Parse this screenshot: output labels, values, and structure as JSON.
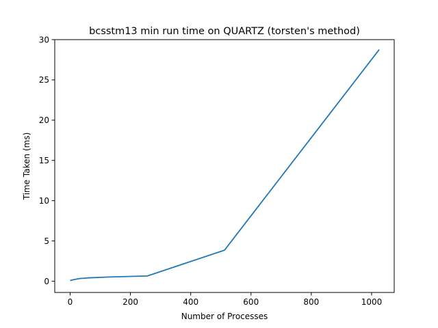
{
  "chart_data": {
    "type": "line",
    "title": "bcsstm13 min run time on QUARTZ (torsten's method)",
    "xlabel": "Number of Processes",
    "ylabel": "Time Taken (ms)",
    "xlim": [
      -51,
      1075
    ],
    "ylim": [
      -1.4,
      30
    ],
    "xticks": [
      0,
      200,
      400,
      600,
      800,
      1000
    ],
    "yticks": [
      0,
      5,
      10,
      15,
      20,
      25,
      30
    ],
    "grid": false,
    "series": [
      {
        "color": "#1f77b4",
        "x": [
          2,
          4,
          8,
          16,
          32,
          64,
          128,
          256,
          512,
          1024
        ],
        "y": [
          0.1,
          0.12,
          0.16,
          0.22,
          0.33,
          0.42,
          0.52,
          0.65,
          3.85,
          28.7
        ]
      }
    ]
  }
}
